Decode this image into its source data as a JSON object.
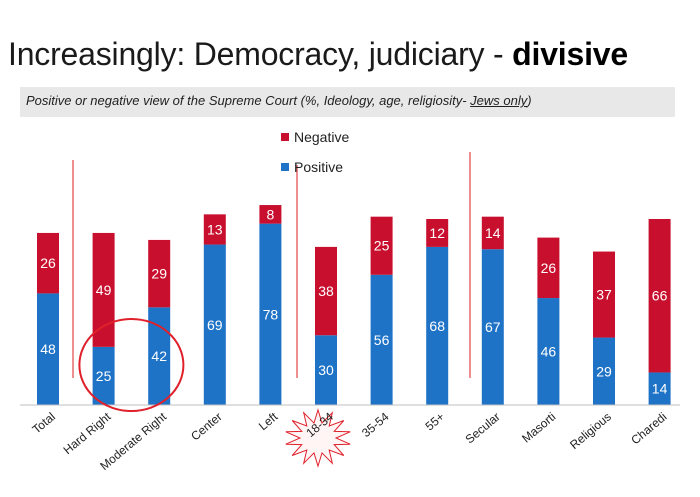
{
  "header": {
    "title_main": "Increasingly: Democracy, judiciary - ",
    "title_bold": "divisive",
    "subtitle_main": "Positive or negative view of the Supreme Court (%, Ideology, age, religiosity- ",
    "subtitle_underlined": "Jews only",
    "subtitle_end": ")"
  },
  "chart_data": {
    "type": "bar",
    "stacked": true,
    "categories": [
      "Total",
      "Hard Right",
      "Moderate Right",
      "Center",
      "Left",
      "18-34",
      "35-54",
      "55+",
      "Secular",
      "Masorti",
      "Religious",
      "Charedi"
    ],
    "series": [
      {
        "name": "Positive",
        "color": "#1f73c6",
        "values": [
          48,
          25,
          42,
          69,
          78,
          30,
          56,
          68,
          67,
          46,
          29,
          14
        ]
      },
      {
        "name": "Negative",
        "color": "#c8102e",
        "values": [
          26,
          49,
          29,
          13,
          8,
          38,
          25,
          12,
          14,
          26,
          37,
          66
        ]
      }
    ],
    "legend_position": "top-center",
    "grid": false,
    "annotations": {
      "circled": [
        "Hard Right",
        "Moderate Right"
      ],
      "starburst": "18-34",
      "circle_color": "#e0202a",
      "divider_color": "#e86a6a"
    }
  }
}
